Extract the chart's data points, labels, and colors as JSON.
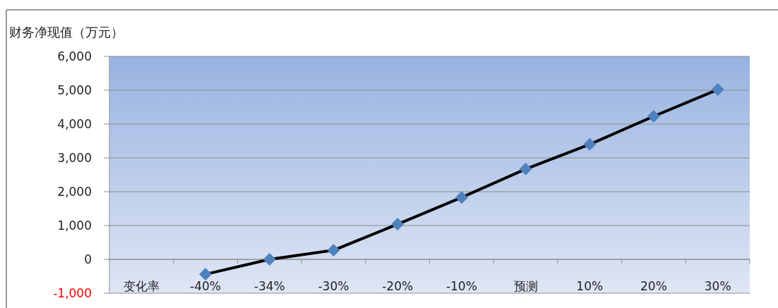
{
  "chart_data": {
    "type": "line",
    "ylabel": "财务净现值（万元）",
    "categories": [
      "变化率",
      "-40%",
      "-34%",
      "-30%",
      "-20%",
      "-10%",
      "预测",
      "10%",
      "20%",
      "30%"
    ],
    "series": [
      {
        "color": "#000000",
        "values": [
          null,
          -440,
          0,
          270,
          1040,
          1830,
          2670,
          3400,
          4230,
          5020
        ]
      }
    ],
    "marker": "diamond",
    "grid": "y",
    "ylim": [
      -1000,
      6000
    ],
    "yticks": [
      {
        "value": -1000,
        "label": "-1,000"
      },
      0,
      {
        "value": 1000,
        "label": "1,000"
      },
      {
        "value": 2000,
        "label": "2,000"
      },
      {
        "value": 3000,
        "label": "3,000"
      },
      {
        "value": 4000,
        "label": "4,000"
      },
      {
        "value": 5000,
        "label": "5,000"
      },
      {
        "value": 6000,
        "label": "6,000"
      }
    ]
  }
}
